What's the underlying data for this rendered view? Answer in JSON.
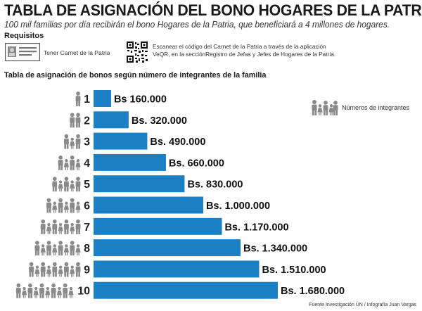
{
  "header": {
    "title": "TABLA DE ASIGNACIÓN DEL BONO HOGARES DE LA PATRIA",
    "subtitle": "100 mil familias por día recibirán el bono Hogares de la Patria, que beneficiará a 4 millones de hogares."
  },
  "requirements": {
    "title": "Requisitos",
    "item1": "Tener Carnet de la Patria",
    "item2_line1": "Escanear el código del Carnet de la Patria a través de la aplicación",
    "item2_line2": "VeQR, en la secciónRegistro de Jefas y Jefes de Hogares de la Patria.",
    "item1_icon": "id-card-icon",
    "item2_icon": "qr-code-icon"
  },
  "legend": {
    "label": "Números de integrantes",
    "icon": "family-icon"
  },
  "footer": {
    "source": "Fuente Investigación ÚN / Infografía Juan Vargas"
  },
  "colors": {
    "bar": "#1b7fc4",
    "person": "#8a8a8a",
    "text": "#1a1a1a"
  },
  "chart_data": {
    "type": "bar",
    "orientation": "horizontal",
    "title": "Tabla de asignación de bonos según número de integrantes de la familia",
    "categories": [
      "1",
      "2",
      "3",
      "4",
      "5",
      "6",
      "7",
      "8",
      "9",
      "10"
    ],
    "values": [
      160000,
      320000,
      490000,
      660000,
      830000,
      1000000,
      1170000,
      1340000,
      1510000,
      1680000
    ],
    "labels": [
      "Bs 160.000",
      "Bs. 320.000",
      "Bs. 490.000",
      "Bs. 660.000",
      "Bs. 830.000",
      "Bs. 1.000.000",
      "Bs. 1.170.000",
      "Bs. 1.340.000",
      "Bs. 1.510.000",
      "Bs. 1.680.000"
    ],
    "members": [
      1,
      2,
      3,
      4,
      5,
      6,
      7,
      8,
      9,
      10
    ],
    "grid": false,
    "legend_position": "right"
  }
}
